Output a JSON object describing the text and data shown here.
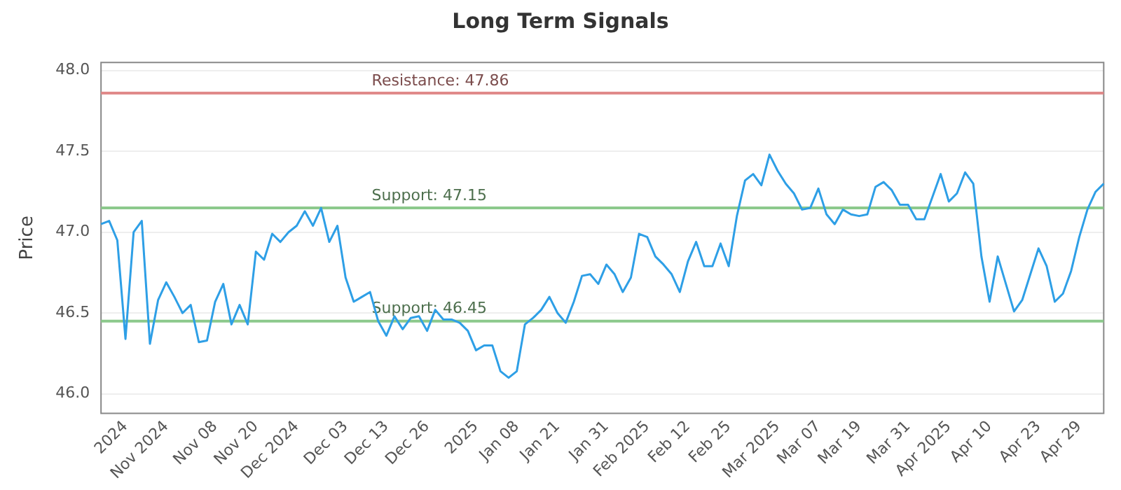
{
  "chart_data": {
    "type": "line",
    "title": "Long Term Signals",
    "ylabel": "Price",
    "categories": [
      null,
      null,
      null,
      "2024",
      null,
      null,
      null,
      null,
      "Nov 2024",
      null,
      null,
      null,
      null,
      null,
      "Nov 08",
      null,
      null,
      null,
      null,
      "Nov 20",
      null,
      null,
      null,
      null,
      "Dec 2024",
      null,
      null,
      null,
      null,
      null,
      "Dec 03",
      null,
      null,
      null,
      null,
      "Dec 13",
      null,
      null,
      null,
      null,
      "Dec 26",
      null,
      null,
      null,
      null,
      null,
      "2025",
      null,
      null,
      null,
      null,
      "Jan 08",
      null,
      null,
      null,
      null,
      "Jan 21",
      null,
      null,
      null,
      null,
      null,
      "Jan 31",
      null,
      null,
      null,
      null,
      "Feb 2025",
      null,
      null,
      null,
      null,
      "Feb 12",
      null,
      null,
      null,
      null,
      "Feb 25",
      null,
      null,
      null,
      null,
      null,
      "Mar 2025",
      null,
      null,
      null,
      null,
      "Mar 07",
      null,
      null,
      null,
      null,
      "Mar 19",
      null,
      null,
      null,
      null,
      null,
      "Mar 31",
      null,
      null,
      null,
      null,
      "Apr 2025",
      null,
      null,
      null,
      null,
      "Apr 10",
      null,
      null,
      null,
      null,
      null,
      "Apr 23",
      null,
      null,
      null,
      null,
      "Apr 29",
      null,
      null,
      null
    ],
    "series": [
      {
        "color": "#2e9fe6",
        "values": [
          47.05,
          47.07,
          46.95,
          46.34,
          47.0,
          47.07,
          46.31,
          46.58,
          46.69,
          46.6,
          46.5,
          46.55,
          46.32,
          46.33,
          46.57,
          46.68,
          46.43,
          46.55,
          46.43,
          46.88,
          46.83,
          46.99,
          46.94,
          47.0,
          47.04,
          47.13,
          47.04,
          47.15,
          46.94,
          47.04,
          46.72,
          46.57,
          46.6,
          46.63,
          46.45,
          46.36,
          46.48,
          46.4,
          46.47,
          46.48,
          46.39,
          46.52,
          46.46,
          46.46,
          46.44,
          46.39,
          46.27,
          46.3,
          46.3,
          46.14,
          46.1,
          46.14,
          46.43,
          46.47,
          46.52,
          46.6,
          46.5,
          46.44,
          46.57,
          46.73,
          46.74,
          46.68,
          46.8,
          46.74,
          46.63,
          46.72,
          46.99,
          46.97,
          46.85,
          46.8,
          46.74,
          46.63,
          46.82,
          46.94,
          46.79,
          46.79,
          46.93,
          46.79,
          47.1,
          47.32,
          47.36,
          47.29,
          47.48,
          47.38,
          47.3,
          47.24,
          47.14,
          47.15,
          47.27,
          47.11,
          47.05,
          47.14,
          47.11,
          47.1,
          47.11,
          47.28,
          47.31,
          47.26,
          47.17,
          47.17,
          47.08,
          47.08,
          47.22,
          47.36,
          47.19,
          47.24,
          47.37,
          47.3,
          46.85,
          46.57,
          46.85,
          46.68,
          46.51,
          46.58,
          46.74,
          46.9,
          46.79,
          46.57,
          46.62,
          46.76,
          46.97,
          47.14,
          47.25,
          47.3
        ]
      }
    ],
    "ylim": [
      45.88,
      48.05
    ],
    "yticks": [
      {
        "value": 46,
        "label": "46.0"
      },
      {
        "value": 46.5,
        "label": "46.5"
      },
      {
        "value": 47,
        "label": "47.0"
      },
      {
        "value": 47.5,
        "label": "47.5"
      },
      {
        "value": 48,
        "label": "48.0"
      }
    ],
    "ref_lines": [
      {
        "axis": "y",
        "value": 47.86,
        "label": "Resistance: 47.86",
        "color": "#e08a8a"
      },
      {
        "axis": "y",
        "value": 47.15,
        "label": "Support: 47.15",
        "color": "#8cc98c"
      },
      {
        "axis": "y",
        "value": 46.45,
        "label": "Support: 46.45",
        "color": "#8cc98c"
      }
    ],
    "grid": "y",
    "legend": false,
    "marker": "none",
    "line_style": "solid"
  }
}
